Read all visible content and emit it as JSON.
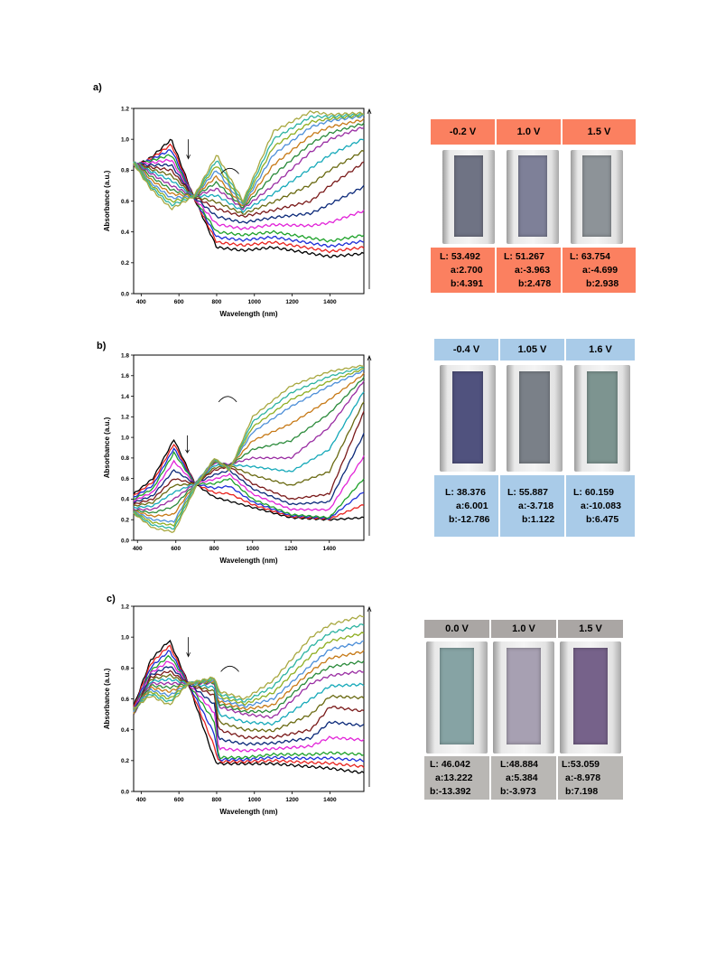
{
  "panels": [
    {
      "label": "a)",
      "chart": {
        "xlabel": "Wavelength (nm)",
        "ylabel": "Absorbance (a.u.)",
        "xlim": [
          360,
          1580
        ],
        "ylim": [
          0.0,
          1.2
        ],
        "xticks": [
          "400",
          "600",
          "800",
          "1000",
          "1200",
          "1400"
        ],
        "yticks": [
          "0.0",
          "0.2",
          "0.4",
          "0.6",
          "0.8",
          "1.0",
          "1.2"
        ]
      },
      "header_color": "#fb8060",
      "values_color": "#fb8060",
      "film_colors": [
        "#6f7384",
        "#7e8098",
        "#8d9398"
      ],
      "voltages": [
        "-0.2 V",
        "1.0 V",
        "1.5 V"
      ],
      "L": [
        "L: 53.492",
        "L: 51.267",
        "L: 63.754"
      ],
      "a": [
        "a:2.700",
        "a:-3.963",
        "a:-4.699"
      ],
      "b": [
        "b:4.391",
        "b:2.478",
        "b:2.938"
      ]
    },
    {
      "label": "b)",
      "chart": {
        "xlabel": "Wavelength (nm)",
        "ylabel": "Absorbance (a.u.)",
        "xlim": [
          380,
          1580
        ],
        "ylim": [
          0.0,
          1.8
        ],
        "xticks": [
          "400",
          "600",
          "800",
          "1000",
          "1200",
          "1400"
        ],
        "yticks": [
          "0.0",
          "0.2",
          "0.4",
          "0.6",
          "0.8",
          "1.0",
          "1.2",
          "1.4",
          "1.6",
          "1.8"
        ]
      },
      "header_color": "#a9cbe8",
      "values_color": "#a9cbe8",
      "film_colors": [
        "#50527e",
        "#7a8088",
        "#7d9490"
      ],
      "voltages": [
        "-0.4 V",
        "1.05 V",
        "1.6 V"
      ],
      "L": [
        "L: 38.376",
        "L: 55.887",
        "L: 60.159"
      ],
      "a": [
        "a:6.001",
        "a:-3.718",
        "a:-10.083"
      ],
      "b": [
        "b:-12.786",
        "b:1.122",
        "b:6.475"
      ]
    },
    {
      "label": "c)",
      "chart": {
        "xlabel": "Wavelength (nm)",
        "ylabel": "Absorbance (a.u.)",
        "xlim": [
          360,
          1580
        ],
        "ylim": [
          0.0,
          1.2
        ],
        "xticks": [
          "400",
          "600",
          "800",
          "1000",
          "1200",
          "1400"
        ],
        "yticks": [
          "0.0",
          "0.2",
          "0.4",
          "0.6",
          "0.8",
          "1.0",
          "1.2"
        ]
      },
      "header_color": "#aaa6a4",
      "values_color": "#b9b7b4",
      "film_colors": [
        "#86a3a4",
        "#a7a0b2",
        "#76628a"
      ],
      "voltages": [
        "0.0 V",
        "1.0 V",
        "1.5 V"
      ],
      "L": [
        "L: 46.042",
        "L:48.884",
        "L:53.059"
      ],
      "a": [
        "a:13.222",
        "a:5.384",
        "a:-8.978"
      ],
      "b": [
        "b:-13.392",
        "b:-3.973",
        "b:7.198"
      ]
    }
  ],
  "chart_data": [
    {
      "type": "line",
      "xlabel": "Wavelength (nm)",
      "ylabel": "Absorbance (a.u.)",
      "xlim": [
        360,
        1580
      ],
      "ylim": [
        0.0,
        1.2
      ],
      "x": [
        360,
        450,
        560,
        680,
        800,
        940,
        1100,
        1300,
        1400,
        1580
      ],
      "series": [
        {
          "values": [
            0.82,
            0.88,
            1.0,
            0.62,
            0.3,
            0.28,
            0.3,
            0.26,
            0.24,
            0.26
          ]
        },
        {
          "values": [
            0.83,
            0.86,
            0.9,
            0.62,
            0.4,
            0.38,
            0.4,
            0.36,
            0.34,
            0.38
          ]
        },
        {
          "values": [
            0.84,
            0.82,
            0.8,
            0.63,
            0.55,
            0.5,
            0.54,
            0.6,
            0.7,
            0.85
          ]
        },
        {
          "values": [
            0.85,
            0.78,
            0.7,
            0.63,
            0.68,
            0.55,
            0.7,
            0.92,
            1.0,
            1.08
          ]
        },
        {
          "values": [
            0.86,
            0.72,
            0.62,
            0.63,
            0.8,
            0.57,
            0.9,
            1.08,
            1.12,
            1.15
          ]
        },
        {
          "values": [
            0.84,
            0.68,
            0.55,
            0.63,
            0.9,
            0.6,
            1.05,
            1.18,
            1.16,
            1.17
          ]
        }
      ]
    },
    {
      "type": "line",
      "xlabel": "Wavelength (nm)",
      "ylabel": "Absorbance (a.u.)",
      "xlim": [
        380,
        1580
      ],
      "ylim": [
        0.0,
        1.8
      ],
      "x": [
        380,
        480,
        590,
        700,
        800,
        880,
        1000,
        1200,
        1400,
        1580
      ],
      "series": [
        {
          "values": [
            0.45,
            0.6,
            0.98,
            0.55,
            0.42,
            0.38,
            0.32,
            0.22,
            0.2,
            0.22
          ]
        },
        {
          "values": [
            0.4,
            0.5,
            0.85,
            0.55,
            0.55,
            0.6,
            0.4,
            0.25,
            0.22,
            0.6
          ]
        },
        {
          "values": [
            0.35,
            0.4,
            0.6,
            0.55,
            0.68,
            0.72,
            0.55,
            0.4,
            0.45,
            1.25
          ]
        },
        {
          "values": [
            0.3,
            0.3,
            0.4,
            0.55,
            0.75,
            0.74,
            0.8,
            0.8,
            1.1,
            1.55
          ]
        },
        {
          "values": [
            0.28,
            0.2,
            0.18,
            0.55,
            0.78,
            0.7,
            1.05,
            1.3,
            1.5,
            1.65
          ]
        },
        {
          "values": [
            0.26,
            0.12,
            0.08,
            0.5,
            0.8,
            0.68,
            1.2,
            1.5,
            1.64,
            1.7
          ]
        }
      ]
    },
    {
      "type": "line",
      "xlabel": "Wavelength (nm)",
      "ylabel": "Absorbance (a.u.)",
      "xlim": [
        360,
        1580
      ],
      "ylim": [
        0.0,
        1.2
      ],
      "x": [
        360,
        450,
        550,
        650,
        790,
        810,
        950,
        1100,
        1300,
        1400,
        1580
      ],
      "series": [
        {
          "values": [
            0.55,
            0.85,
            0.98,
            0.7,
            0.2,
            0.18,
            0.18,
            0.18,
            0.16,
            0.15,
            0.12
          ]
        },
        {
          "values": [
            0.52,
            0.78,
            0.88,
            0.7,
            0.45,
            0.22,
            0.22,
            0.24,
            0.24,
            0.25,
            0.24
          ]
        },
        {
          "values": [
            0.5,
            0.74,
            0.78,
            0.7,
            0.62,
            0.4,
            0.35,
            0.35,
            0.4,
            0.55,
            0.52
          ]
        },
        {
          "values": [
            0.5,
            0.7,
            0.7,
            0.7,
            0.7,
            0.55,
            0.5,
            0.48,
            0.7,
            0.75,
            0.78
          ]
        },
        {
          "values": [
            0.52,
            0.66,
            0.62,
            0.7,
            0.72,
            0.6,
            0.55,
            0.6,
            0.82,
            0.92,
            0.97
          ]
        },
        {
          "values": [
            0.54,
            0.62,
            0.56,
            0.7,
            0.74,
            0.65,
            0.6,
            0.72,
            1.0,
            1.08,
            1.14
          ]
        }
      ]
    }
  ]
}
